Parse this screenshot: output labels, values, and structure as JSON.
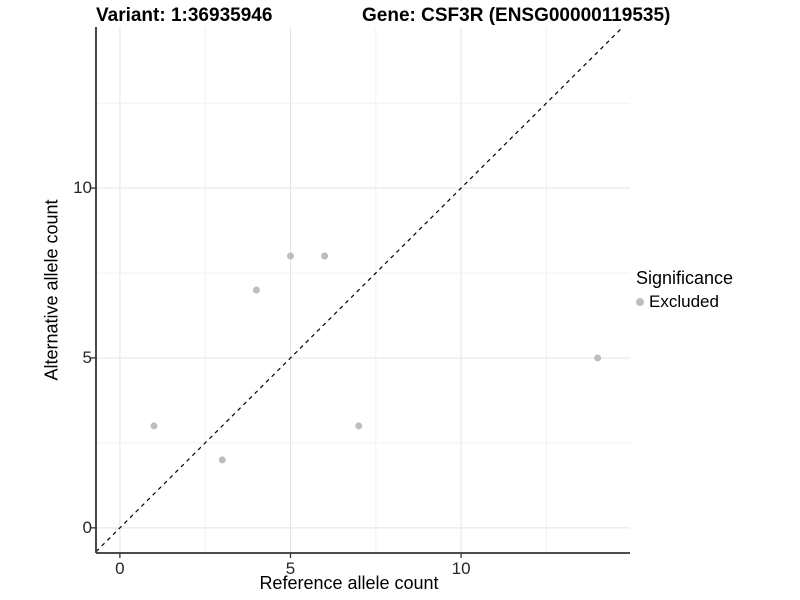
{
  "figure": {
    "title_left": "Variant: 1:36935946",
    "title_right": "Gene: CSF3R (ENSG00000119535)"
  },
  "legend": {
    "title": "Significance",
    "items": [
      {
        "label": "Excluded",
        "color": "#bdbdbd"
      }
    ]
  },
  "colors": {
    "background": "#ffffff",
    "grid_major": "#e4e4e4",
    "grid_minor": "#f1f1f1",
    "axis_line": "#333333",
    "tick_mark": "#333333",
    "point": "#bdbdbd",
    "identity_line": "#000000",
    "text": "#000000"
  },
  "chart_data": {
    "type": "scatter",
    "title": "Variant: 1:36935946   Gene: CSF3R (ENSG00000119535)",
    "xlabel": "Reference allele count",
    "ylabel": "Alternative allele count",
    "xlim": [
      -0.7,
      14.95
    ],
    "ylim": [
      -0.74,
      14.74
    ],
    "x_ticks": [
      0,
      5,
      10
    ],
    "y_ticks": [
      0,
      5,
      10
    ],
    "grid": "major and minor, light gray on white",
    "legend_position": "right",
    "reference_line": {
      "kind": "identity y=x",
      "style": "dashed",
      "color": "#000000"
    },
    "series": [
      {
        "name": "Excluded",
        "color": "#bdbdbd",
        "points": [
          {
            "x": 1,
            "y": 3
          },
          {
            "x": 3,
            "y": 2
          },
          {
            "x": 4,
            "y": 7
          },
          {
            "x": 5,
            "y": 8
          },
          {
            "x": 6,
            "y": 8
          },
          {
            "x": 7,
            "y": 3
          },
          {
            "x": 14,
            "y": 5
          }
        ]
      }
    ]
  }
}
